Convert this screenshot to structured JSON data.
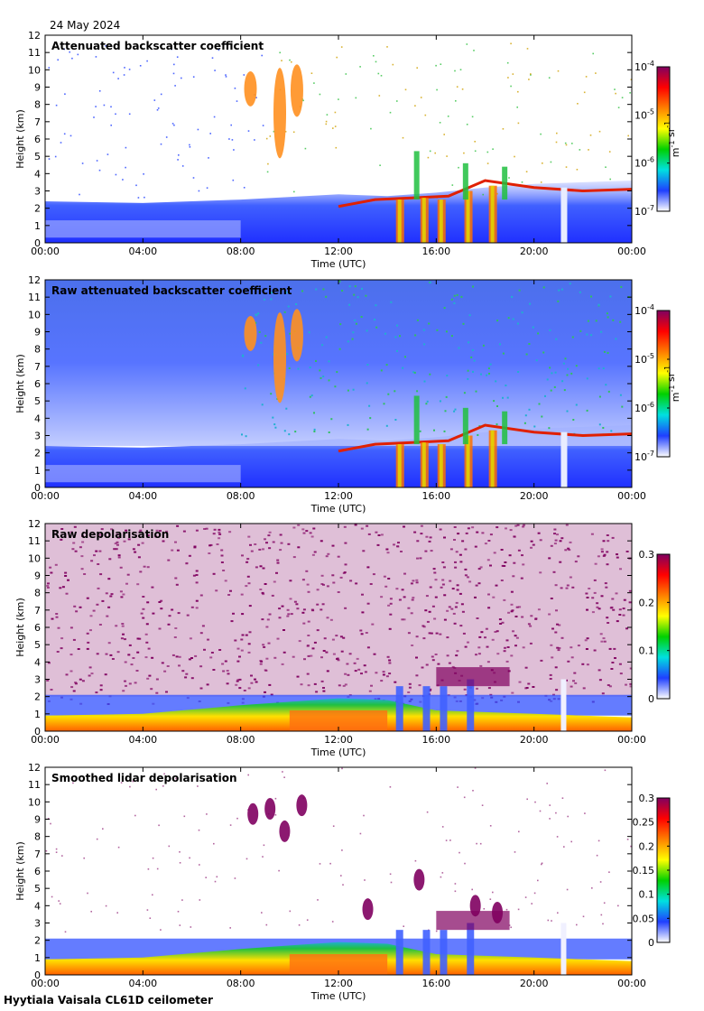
{
  "date": "24 May 2024",
  "footer": "Hyytiala Vaisala CL61D ceilometer",
  "chart_data": [
    {
      "type": "heatmap",
      "title": "Attenuated backscatter coefficient",
      "xlabel": "Time (UTC)",
      "ylabel": "Height (km)",
      "x_ticks": [
        "00:00",
        "04:00",
        "08:00",
        "12:00",
        "16:00",
        "20:00",
        "00:00"
      ],
      "x_range_hours": [
        0,
        24
      ],
      "y_ticks": [
        0,
        1,
        2,
        3,
        4,
        5,
        6,
        7,
        8,
        9,
        10,
        11,
        12
      ],
      "ylim": [
        0,
        12
      ],
      "colorbar": {
        "scale": "log",
        "range": [
          1e-07,
          0.0001
        ],
        "ticks": [
          {
            "base": "10",
            "exp": "-4"
          },
          {
            "base": "10",
            "exp": "-5"
          },
          {
            "base": "10",
            "exp": "-6"
          },
          {
            "base": "10",
            "exp": "-7"
          }
        ],
        "unit_main": [
          "m",
          " sr"
        ],
        "unit_exp": [
          "-1",
          "-1"
        ],
        "colors": [
          "#ffffff",
          "#1f3fff",
          "#00e0e0",
          "#00d000",
          "#ffff00",
          "#ff8000",
          "#ff0000",
          "#800060"
        ]
      }
    },
    {
      "type": "heatmap",
      "title": "Raw attenuated backscatter coefficient",
      "xlabel": "Time (UTC)",
      "ylabel": "Height (km)",
      "x_ticks": [
        "00:00",
        "04:00",
        "08:00",
        "12:00",
        "16:00",
        "20:00",
        "00:00"
      ],
      "x_range_hours": [
        0,
        24
      ],
      "y_ticks": [
        0,
        1,
        2,
        3,
        4,
        5,
        6,
        7,
        8,
        9,
        10,
        11,
        12
      ],
      "ylim": [
        0,
        12
      ],
      "colorbar": {
        "scale": "log",
        "range": [
          1e-07,
          0.0001
        ],
        "ticks": [
          {
            "base": "10",
            "exp": "-4"
          },
          {
            "base": "10",
            "exp": "-5"
          },
          {
            "base": "10",
            "exp": "-6"
          },
          {
            "base": "10",
            "exp": "-7"
          }
        ],
        "unit_main": [
          "m",
          " sr"
        ],
        "unit_exp": [
          "-1",
          "-1"
        ],
        "colors": [
          "#ffffff",
          "#1f3fff",
          "#00e0e0",
          "#00d000",
          "#ffff00",
          "#ff8000",
          "#ff0000",
          "#800060"
        ]
      }
    },
    {
      "type": "heatmap",
      "title": "Raw depolarisation",
      "xlabel": "Time (UTC)",
      "ylabel": "Height (km)",
      "x_ticks": [
        "00:00",
        "04:00",
        "08:00",
        "12:00",
        "16:00",
        "20:00",
        "00:00"
      ],
      "x_range_hours": [
        0,
        24
      ],
      "y_ticks": [
        0,
        1,
        2,
        3,
        4,
        5,
        6,
        7,
        8,
        9,
        10,
        11,
        12
      ],
      "ylim": [
        0,
        12
      ],
      "colorbar": {
        "scale": "linear",
        "range": [
          0,
          0.3
        ],
        "ticks": [
          {
            "label": "0.3"
          },
          {
            "label": "0.2"
          },
          {
            "label": "0.1"
          },
          {
            "label": "0"
          }
        ],
        "unit_main": [],
        "unit_exp": [],
        "colors": [
          "#ffffff",
          "#1f3fff",
          "#00e0e0",
          "#00d000",
          "#ffff00",
          "#ff8000",
          "#ff0000",
          "#800060"
        ]
      }
    },
    {
      "type": "heatmap",
      "title": "Smoothed lidar depolarisation",
      "xlabel": "Time (UTC)",
      "ylabel": "Height (km)",
      "x_ticks": [
        "00:00",
        "04:00",
        "08:00",
        "12:00",
        "16:00",
        "20:00",
        "00:00"
      ],
      "x_range_hours": [
        0,
        24
      ],
      "y_ticks": [
        0,
        1,
        2,
        3,
        4,
        5,
        6,
        7,
        8,
        9,
        10,
        11,
        12
      ],
      "ylim": [
        0,
        12
      ],
      "colorbar": {
        "scale": "linear",
        "range": [
          0,
          0.3
        ],
        "ticks": [
          {
            "label": "0.3"
          },
          {
            "label": "0.25"
          },
          {
            "label": "0.2"
          },
          {
            "label": "0.15"
          },
          {
            "label": "0.1"
          },
          {
            "label": "0.05"
          },
          {
            "label": "0"
          }
        ],
        "unit_main": [],
        "unit_exp": [],
        "colors": [
          "#ffffff",
          "#1f3fff",
          "#00e0e0",
          "#00d000",
          "#ffff00",
          "#ff8000",
          "#ff0000",
          "#800060"
        ]
      }
    }
  ]
}
